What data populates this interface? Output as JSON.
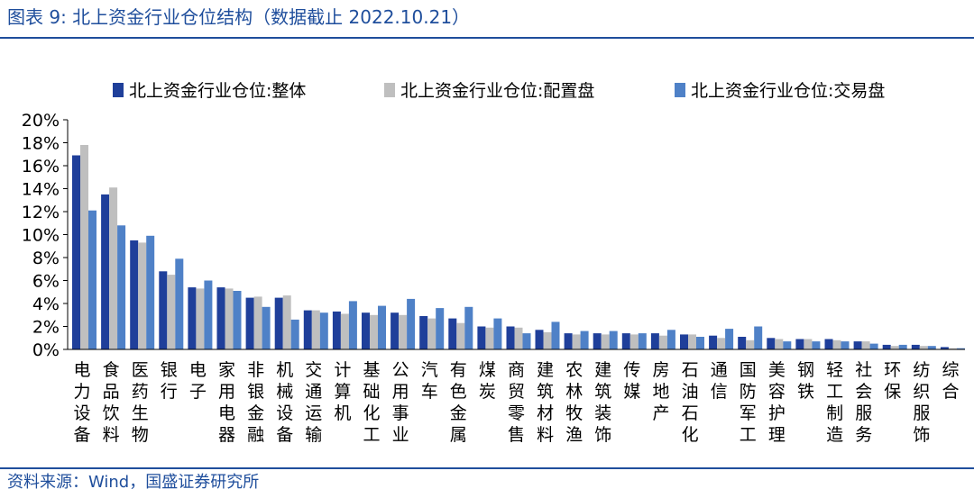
{
  "header": {
    "title": "图表 9:  北上资金行业仓位结构（数据截止 2022.10.21）"
  },
  "footer": {
    "source": "资料来源：Wind，国盛证券研究所"
  },
  "chart_data": {
    "type": "bar",
    "title": "",
    "xlabel": "",
    "ylabel": "",
    "ylim": [
      0,
      20
    ],
    "y_ticks": [
      "0%",
      "2%",
      "4%",
      "6%",
      "8%",
      "10%",
      "12%",
      "14%",
      "16%",
      "18%",
      "20%"
    ],
    "y_unit": "%",
    "grid": false,
    "legend_position": "top",
    "categories": [
      "电力设备",
      "食品饮料",
      "医药生物",
      "银行",
      "电子",
      "家用电器",
      "非银金融",
      "机械设备",
      "交通运输",
      "计算机",
      "基础化工",
      "公用事业",
      "汽车",
      "有色金属",
      "煤炭",
      "商贸零售",
      "建筑材料",
      "农林牧渔",
      "建筑装饰",
      "传媒",
      "房地产",
      "石油石化",
      "通信",
      "国防军工",
      "美容护理",
      "钢铁",
      "轻工制造",
      "社会服务",
      "环保",
      "纺织服饰",
      "综合"
    ],
    "series": [
      {
        "name": "北上资金行业仓位:整体",
        "color": "#1f3f9a",
        "values": [
          16.9,
          13.5,
          9.5,
          6.8,
          5.4,
          5.4,
          4.5,
          4.5,
          3.4,
          3.3,
          3.2,
          3.2,
          2.9,
          2.7,
          2.0,
          2.0,
          1.7,
          1.4,
          1.4,
          1.4,
          1.4,
          1.3,
          1.2,
          1.1,
          1.0,
          0.9,
          0.9,
          0.7,
          0.4,
          0.4,
          0.2
        ]
      },
      {
        "name": "北上资金行业仓位:配置盘",
        "color": "#bfbfbf",
        "values": [
          17.8,
          14.1,
          9.3,
          6.5,
          5.3,
          5.3,
          4.6,
          4.7,
          3.4,
          3.1,
          3.0,
          3.0,
          2.7,
          2.3,
          1.9,
          1.9,
          1.5,
          1.3,
          1.3,
          1.3,
          1.2,
          1.3,
          1.0,
          0.8,
          0.9,
          0.9,
          0.8,
          0.7,
          0.3,
          0.3,
          0.1
        ]
      },
      {
        "name": "北上资金行业仓位:交易盘",
        "color": "#4f81c7",
        "values": [
          12.1,
          10.8,
          9.9,
          7.9,
          6.0,
          5.1,
          3.7,
          2.6,
          3.2,
          4.2,
          3.8,
          4.4,
          3.6,
          3.7,
          2.7,
          1.4,
          2.4,
          1.6,
          1.6,
          1.4,
          1.7,
          1.1,
          1.8,
          2.0,
          0.7,
          0.7,
          0.7,
          0.5,
          0.4,
          0.3,
          0.1
        ]
      }
    ]
  }
}
